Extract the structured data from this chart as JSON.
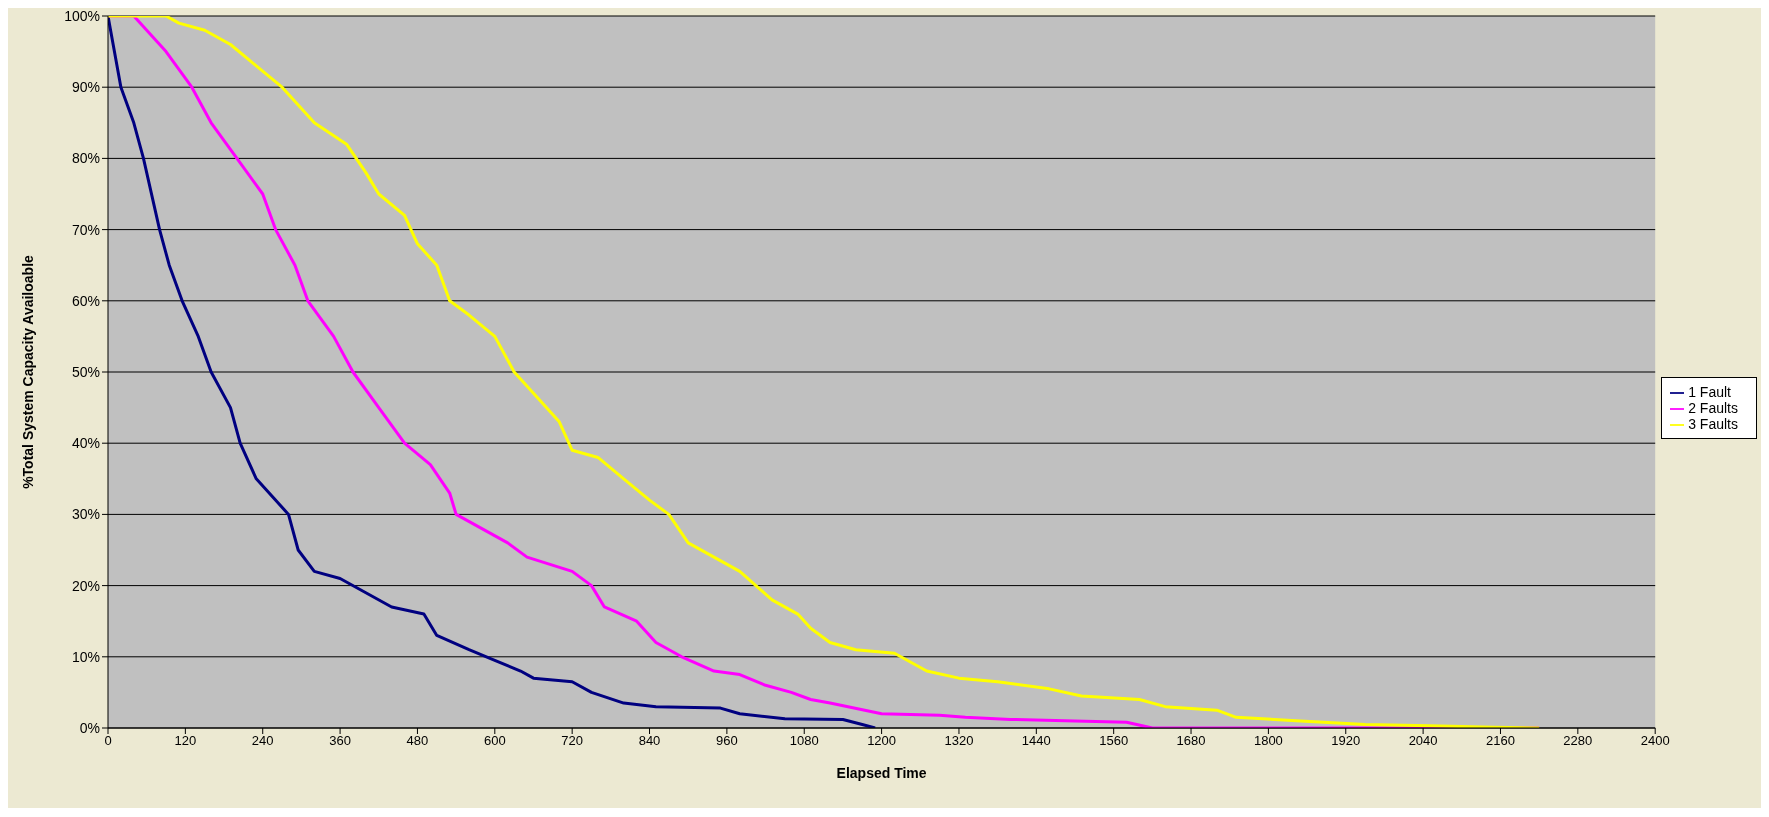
{
  "chart_data": {
    "type": "line",
    "xlabel": "Elapsed Time",
    "ylabel": "%Total System Capacity Availoable",
    "xlim": [
      0,
      2400
    ],
    "xticks": [
      0,
      120,
      240,
      360,
      480,
      600,
      720,
      840,
      960,
      1080,
      1200,
      1320,
      1440,
      1560,
      1680,
      1800,
      1920,
      2040,
      2160,
      2280,
      2400
    ],
    "ylim": [
      0,
      100
    ],
    "yticks": [
      {
        "value": 0,
        "label": "0%"
      },
      {
        "value": 10,
        "label": "10%"
      },
      {
        "value": 20,
        "label": "20%"
      },
      {
        "value": 30,
        "label": "30%"
      },
      {
        "value": 40,
        "label": "40%"
      },
      {
        "value": 50,
        "label": "50%"
      },
      {
        "value": 60,
        "label": "60%"
      },
      {
        "value": 70,
        "label": "70%"
      },
      {
        "value": 80,
        "label": "80%"
      },
      {
        "value": 90,
        "label": "90%"
      },
      {
        "value": 100,
        "label": "100%"
      }
    ],
    "grid": "y",
    "legend": "right",
    "marker": "none",
    "line_style": "solid",
    "series": [
      {
        "name": "1 Fault",
        "color": "#000080",
        "x": [
          0,
          20,
          40,
          55,
          80,
          95,
          115,
          140,
          160,
          190,
          205,
          230,
          280,
          295,
          320,
          360,
          400,
          440,
          490,
          510,
          560,
          600,
          640,
          660,
          720,
          750,
          800,
          850,
          950,
          980,
          1050,
          1140,
          1170,
          1190
        ],
        "values": [
          100,
          90,
          85,
          80,
          70,
          65,
          60,
          55,
          50,
          45,
          40,
          35,
          30,
          25,
          22,
          21,
          19,
          17,
          16,
          13,
          11,
          9.5,
          8,
          7,
          6.5,
          5,
          3.5,
          3,
          2.8,
          2,
          1.3,
          1.2,
          0.5,
          0
        ]
      },
      {
        "name": "2 Faults",
        "color": "#ff00ff",
        "x": [
          0,
          40,
          90,
          130,
          160,
          200,
          240,
          260,
          290,
          310,
          350,
          380,
          420,
          460,
          500,
          530,
          540,
          580,
          620,
          650,
          720,
          750,
          770,
          820,
          850,
          890,
          940,
          980,
          1020,
          1060,
          1090,
          1120,
          1200,
          1290,
          1330,
          1400,
          1500,
          1580,
          1620,
          2220
        ],
        "values": [
          100,
          100,
          95,
          90,
          85,
          80,
          75,
          70,
          65,
          60,
          55,
          50,
          45,
          40,
          37,
          33,
          30,
          28,
          26,
          24,
          22,
          20,
          17,
          15,
          12,
          10,
          8,
          7.5,
          6,
          5,
          4,
          3.5,
          2,
          1.8,
          1.5,
          1.2,
          1,
          0.8,
          0,
          0
        ]
      },
      {
        "name": "3 Faults",
        "color": "#ffff00",
        "x": [
          0,
          90,
          110,
          150,
          190,
          230,
          270,
          300,
          320,
          370,
          400,
          420,
          460,
          480,
          510,
          530,
          560,
          600,
          630,
          660,
          700,
          720,
          760,
          800,
          840,
          870,
          900,
          940,
          980,
          1030,
          1070,
          1090,
          1120,
          1160,
          1220,
          1270,
          1320,
          1380,
          1460,
          1510,
          1600,
          1640,
          1720,
          1750,
          1850,
          1950,
          2050,
          2150,
          2220
        ],
        "values": [
          100,
          100,
          99,
          98,
          96,
          93,
          90,
          87,
          85,
          82,
          78,
          75,
          72,
          68,
          65,
          60,
          58,
          55,
          50,
          47,
          43,
          39,
          38,
          35,
          32,
          30,
          26,
          24,
          22,
          18,
          16,
          14,
          12,
          11,
          10.5,
          8,
          7,
          6.5,
          5.5,
          4.5,
          4,
          3,
          2.5,
          1.5,
          1,
          0.5,
          0.3,
          0.1,
          0
        ]
      }
    ]
  }
}
